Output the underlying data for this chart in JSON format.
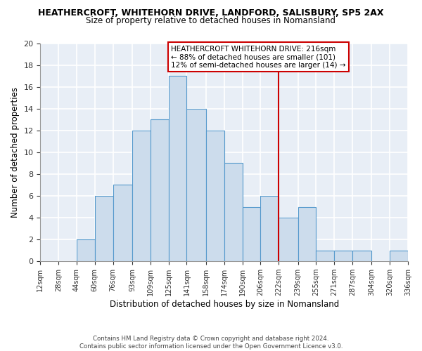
{
  "title_line1": "HEATHERCROFT, WHITEHORN DRIVE, LANDFORD, SALISBURY, SP5 2AX",
  "title_line2": "Size of property relative to detached houses in Nomansland",
  "xlabel": "Distribution of detached houses by size in Nomansland",
  "ylabel": "Number of detached properties",
  "footer_line1": "Contains HM Land Registry data © Crown copyright and database right 2024.",
  "footer_line2": "Contains public sector information licensed under the Open Government Licence v3.0.",
  "bins": [
    12,
    28,
    44,
    60,
    76,
    93,
    109,
    125,
    141,
    158,
    174,
    190,
    206,
    222,
    239,
    255,
    271,
    287,
    304,
    320,
    336
  ],
  "counts": [
    0,
    0,
    2,
    6,
    7,
    12,
    13,
    17,
    14,
    12,
    9,
    5,
    6,
    4,
    5,
    1,
    1,
    1,
    0,
    1
  ],
  "bar_color": "#ccdcec",
  "bar_edge_color": "#5599cc",
  "vline_x": 222,
  "vline_color": "#cc0000",
  "box_text_line1": "HEATHERCROFT WHITEHORN DRIVE: 216sqm",
  "box_text_line2": "← 88% of detached houses are smaller (101)",
  "box_text_line3": "12% of semi-detached houses are larger (14) →",
  "box_edge_color": "#cc0000",
  "box_fill_color": "#ffffff",
  "ylim": [
    0,
    20
  ],
  "bg_color": "#e8eef6",
  "grid_color": "#ffffff",
  "tick_labels": [
    "12sqm",
    "28sqm",
    "44sqm",
    "60sqm",
    "76sqm",
    "93sqm",
    "109sqm",
    "125sqm",
    "141sqm",
    "158sqm",
    "174sqm",
    "190sqm",
    "206sqm",
    "222sqm",
    "239sqm",
    "255sqm",
    "271sqm",
    "287sqm",
    "304sqm",
    "320sqm",
    "336sqm"
  ]
}
